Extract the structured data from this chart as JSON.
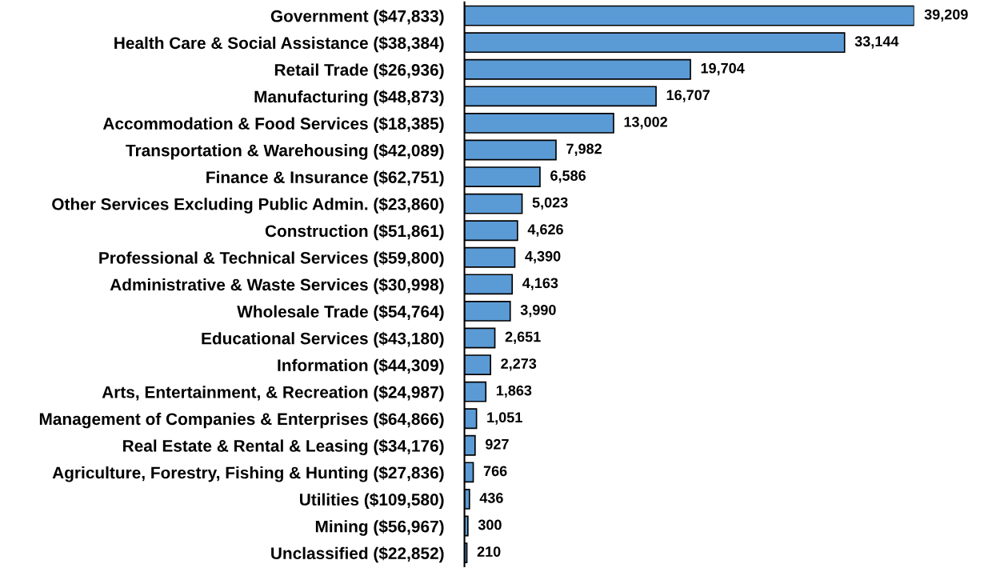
{
  "chart_data": {
    "type": "bar",
    "orientation": "horizontal",
    "color": "#5b9bd5",
    "value_labels": [
      "39,209",
      "33,144",
      "19,704",
      "16,707",
      "13,002",
      "7,982",
      "6,586",
      "5,023",
      "4,626",
      "4,390",
      "4,163",
      "3,990",
      "2,651",
      "2,273",
      "1,863",
      "1,051",
      "927",
      "766",
      "436",
      "300",
      "210"
    ],
    "categories": [
      "Government ($47,833)",
      "Health Care & Social Assistance ($38,384)",
      "Retail Trade ($26,936)",
      "Manufacturing ($48,873)",
      "Accommodation & Food Services ($18,385)",
      "Transportation & Warehousing ($42,089)",
      "Finance & Insurance ($62,751)",
      "Other Services Excluding Public Admin. ($23,860)",
      "Construction ($51,861)",
      "Professional & Technical Services ($59,800)",
      "Administrative & Waste Services ($30,998)",
      "Wholesale Trade ($54,764)",
      "Educational Services ($43,180)",
      "Information ($44,309)",
      "Arts, Entertainment, & Recreation ($24,987)",
      "Management of Companies & Enterprises ($64,866)",
      "Real Estate & Rental & Leasing ($34,176)",
      "Agriculture, Forestry, Fishing & Hunting ($27,836)",
      "Utilities ($109,580)",
      "Mining ($56,967)",
      "Unclassified ($22,852)"
    ],
    "values": [
      39209,
      33144,
      19704,
      16707,
      13002,
      7982,
      6586,
      5023,
      4626,
      4390,
      4163,
      3990,
      2651,
      2273,
      1863,
      1051,
      927,
      766,
      436,
      300,
      210
    ]
  }
}
